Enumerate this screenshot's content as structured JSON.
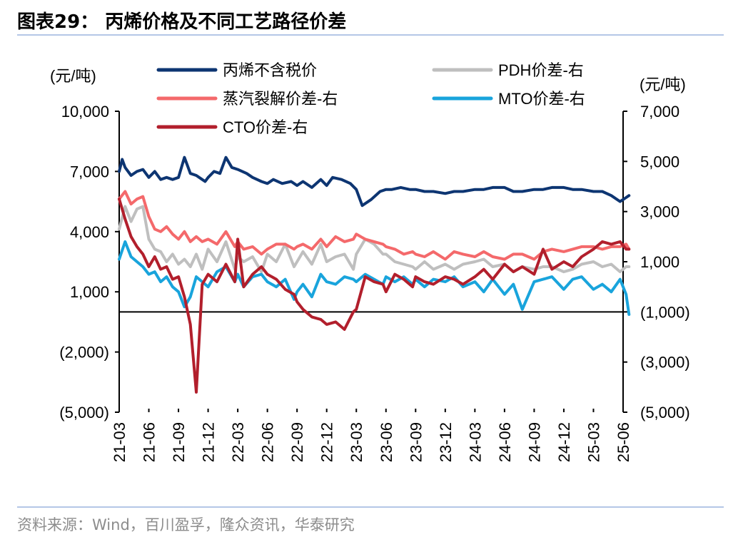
{
  "title": "图表29：  丙烯价格及不同工艺路径价差",
  "source": "资料来源：Wind，百川盈孚，隆众资讯，华泰研究",
  "chart_data": {
    "type": "line",
    "left_unit": "(元/吨)",
    "right_unit": "(元/吨)",
    "left_axis": {
      "ylim": [
        -5000,
        10000
      ],
      "ticks": [
        -5000,
        -2000,
        1000,
        4000,
        7000,
        10000
      ],
      "tick_labels": [
        "(5,000)",
        "(2,000)",
        "1,000",
        "4,000",
        "7,000",
        "10,000"
      ]
    },
    "right_axis": {
      "ylim": [
        -5000,
        7000
      ],
      "ticks": [
        -5000,
        -3000,
        -1000,
        1000,
        3000,
        5000,
        7000
      ],
      "tick_labels": [
        "(5,000)",
        "(3,000)",
        "(1,000)",
        "1,000",
        "3,000",
        "5,000",
        "7,000"
      ]
    },
    "x_ticks": [
      "21-03",
      "21-06",
      "21-09",
      "21-12",
      "22-03",
      "22-06",
      "22-09",
      "22-12",
      "23-03",
      "23-06",
      "23-09",
      "23-12",
      "24-03",
      "24-06",
      "24-09",
      "24-12",
      "25-03",
      "25-06"
    ],
    "legend": [
      "丙烯不含税价",
      "PDH价差-右",
      "蒸汽裂解价差-右",
      "MTO价差-右",
      "CTO价差-右"
    ],
    "legend_position": "top",
    "series": [
      {
        "name": "丙烯不含税价",
        "axis": "left",
        "color": "#0d3572",
        "width": 4,
        "x": [
          0,
          0.1,
          0.2,
          0.4,
          0.6,
          0.8,
          1.0,
          1.2,
          1.4,
          1.6,
          1.8,
          2.0,
          2.2,
          2.4,
          2.6,
          2.8,
          2.9,
          3.0,
          3.2,
          3.4,
          3.6,
          3.8,
          4.0,
          4.3,
          4.5,
          4.8,
          5.0,
          5.2,
          5.5,
          5.8,
          6.0,
          6.2,
          6.5,
          6.8,
          7.0,
          7.2,
          7.5,
          7.8,
          8.0,
          8.2,
          8.5,
          8.8,
          9.0,
          9.2,
          9.5,
          9.8,
          10.0,
          10.3,
          10.6,
          11.0,
          11.3,
          11.6,
          12.0,
          12.3,
          12.6,
          13.0,
          13.3,
          13.6,
          14.0,
          14.3,
          14.6,
          15.0,
          15.3,
          15.6,
          16.0,
          16.3,
          16.6,
          16.9,
          17.1,
          17.2
        ],
        "values": [
          7000,
          7600,
          7200,
          6800,
          7000,
          7100,
          6700,
          7000,
          6600,
          6700,
          6600,
          6700,
          7700,
          6900,
          6800,
          6600,
          6500,
          6700,
          7000,
          6900,
          7700,
          7200,
          7100,
          6900,
          6700,
          6500,
          6400,
          6600,
          6400,
          6500,
          6300,
          6500,
          6200,
          6600,
          6300,
          6700,
          6600,
          6400,
          6100,
          5300,
          5600,
          6000,
          6100,
          6100,
          6200,
          6100,
          6100,
          6000,
          6000,
          5900,
          6000,
          6000,
          6100,
          6100,
          6200,
          6200,
          6000,
          6000,
          6100,
          6100,
          6200,
          6200,
          6100,
          6100,
          6000,
          6000,
          5800,
          5500,
          5700,
          5800
        ]
      },
      {
        "name": "PDH价差-右",
        "axis": "right",
        "color": "#bfbfbf",
        "width": 4,
        "x": [
          0,
          0.2,
          0.4,
          0.6,
          0.8,
          1.0,
          1.2,
          1.4,
          1.6,
          1.8,
          2.0,
          2.2,
          2.4,
          2.6,
          2.8,
          3.0,
          3.3,
          3.6,
          3.9,
          4.0,
          4.2,
          4.5,
          4.8,
          5.0,
          5.3,
          5.6,
          5.9,
          6.0,
          6.2,
          6.5,
          6.8,
          7.0,
          7.3,
          7.6,
          7.9,
          8.0,
          8.3,
          8.6,
          8.9,
          9.0,
          9.3,
          9.6,
          9.9,
          10.0,
          10.3,
          10.6,
          11.0,
          11.3,
          11.6,
          12.0,
          12.3,
          12.6,
          13.0,
          13.3,
          13.6,
          14.0,
          14.3,
          14.6,
          15.0,
          15.3,
          15.6,
          16.0,
          16.3,
          16.6,
          16.9,
          17.1,
          17.2
        ],
        "values": [
          2300,
          3200,
          2600,
          3100,
          3200,
          1900,
          1500,
          1400,
          1000,
          1300,
          900,
          1100,
          800,
          1300,
          700,
          1500,
          1000,
          1800,
          700,
          1200,
          1000,
          1200,
          600,
          1300,
          1000,
          1700,
          800,
          1000,
          1400,
          900,
          1700,
          1000,
          1200,
          1300,
          700,
          1300,
          1900,
          1700,
          1300,
          1300,
          1000,
          900,
          800,
          700,
          1000,
          700,
          900,
          700,
          900,
          1000,
          1100,
          800,
          900,
          600,
          800,
          700,
          800,
          800,
          600,
          700,
          900,
          1000,
          800,
          900,
          600,
          800,
          800
        ]
      },
      {
        "name": "蒸汽裂解价差-右",
        "axis": "right",
        "color": "#f4696b",
        "width": 4,
        "x": [
          0,
          0.2,
          0.4,
          0.6,
          0.8,
          1.0,
          1.2,
          1.4,
          1.6,
          1.8,
          2.0,
          2.2,
          2.4,
          2.6,
          2.8,
          3.0,
          3.3,
          3.6,
          3.9,
          4.0,
          4.2,
          4.5,
          4.8,
          5.0,
          5.3,
          5.6,
          5.9,
          6.0,
          6.2,
          6.5,
          6.8,
          7.0,
          7.3,
          7.6,
          7.9,
          8.0,
          8.3,
          8.6,
          8.9,
          9.0,
          9.3,
          9.6,
          9.9,
          10.0,
          10.3,
          10.6,
          11.0,
          11.3,
          11.6,
          12.0,
          12.3,
          12.6,
          13.0,
          13.3,
          13.6,
          14.0,
          14.3,
          14.6,
          15.0,
          15.3,
          15.6,
          16.0,
          16.3,
          16.6,
          16.9,
          17.1,
          17.2
        ],
        "values": [
          3500,
          3800,
          3300,
          3500,
          3600,
          2800,
          2300,
          2200,
          2400,
          2100,
          1900,
          2200,
          1800,
          2000,
          1800,
          1900,
          1700,
          2200,
          1600,
          1800,
          1500,
          1600,
          1300,
          1500,
          1700,
          1700,
          1500,
          1600,
          1700,
          1500,
          1900,
          1600,
          2000,
          1800,
          1900,
          2100,
          1900,
          1800,
          1700,
          1600,
          1500,
          1300,
          1400,
          1300,
          1200,
          1400,
          1100,
          1400,
          1300,
          1200,
          1400,
          1200,
          1100,
          1300,
          1300,
          1100,
          1400,
          1500,
          1400,
          1500,
          1600,
          1600,
          1500,
          1600,
          1600,
          1700,
          1500
        ]
      },
      {
        "name": "MTO价差-右",
        "axis": "right",
        "color": "#19a4dc",
        "width": 4,
        "x": [
          0,
          0.2,
          0.4,
          0.6,
          0.8,
          1.0,
          1.2,
          1.4,
          1.6,
          1.8,
          2.0,
          2.2,
          2.4,
          2.6,
          2.8,
          3.0,
          3.3,
          3.6,
          3.9,
          4.0,
          4.2,
          4.5,
          4.8,
          5.0,
          5.3,
          5.6,
          5.9,
          6.0,
          6.2,
          6.5,
          6.8,
          7.0,
          7.3,
          7.6,
          7.9,
          8.0,
          8.3,
          8.6,
          8.9,
          9.0,
          9.3,
          9.6,
          9.9,
          10.0,
          10.3,
          10.6,
          11.0,
          11.3,
          11.6,
          12.0,
          12.3,
          12.6,
          13.0,
          13.3,
          13.6,
          14.0,
          14.3,
          14.6,
          15.0,
          15.3,
          15.6,
          16.0,
          16.3,
          16.6,
          16.9,
          17.1,
          17.2
        ],
        "values": [
          1100,
          1800,
          1200,
          1000,
          800,
          500,
          600,
          200,
          400,
          0,
          -200,
          -800,
          -400,
          400,
          200,
          0,
          600,
          800,
          200,
          500,
          0,
          400,
          500,
          200,
          0,
          300,
          -500,
          -200,
          100,
          -400,
          500,
          200,
          100,
          400,
          300,
          200,
          500,
          300,
          100,
          400,
          200,
          400,
          100,
          300,
          0,
          300,
          200,
          400,
          0,
          200,
          -200,
          300,
          -300,
          100,
          -900,
          200,
          300,
          400,
          -100,
          300,
          400,
          -100,
          100,
          -200,
          300,
          -300,
          -1100
        ]
      },
      {
        "name": "CTO价差-右",
        "axis": "right",
        "color": "#b21f2c",
        "width": 4,
        "x": [
          0,
          0.2,
          0.4,
          0.6,
          0.8,
          1.0,
          1.2,
          1.4,
          1.6,
          1.8,
          2.0,
          2.2,
          2.4,
          2.6,
          2.8,
          3.0,
          3.3,
          3.6,
          3.9,
          4.0,
          4.2,
          4.5,
          4.8,
          5.0,
          5.3,
          5.6,
          5.9,
          6.0,
          6.2,
          6.5,
          6.8,
          7.0,
          7.3,
          7.6,
          7.9,
          8.0,
          8.3,
          8.6,
          8.9,
          9.0,
          9.3,
          9.6,
          9.9,
          10.0,
          10.3,
          10.6,
          11.0,
          11.3,
          11.6,
          12.0,
          12.3,
          12.6,
          13.0,
          13.3,
          13.6,
          14.0,
          14.3,
          14.6,
          15.0,
          15.3,
          15.6,
          16.0,
          16.3,
          16.6,
          16.9,
          17.1,
          17.2
        ],
        "values": [
          3500,
          2700,
          2000,
          1600,
          1300,
          800,
          1200,
          700,
          800,
          300,
          400,
          -400,
          -1500,
          -4200,
          100,
          500,
          200,
          900,
          200,
          1900,
          0,
          500,
          800,
          500,
          300,
          -100,
          -300,
          -600,
          -900,
          -1200,
          -1300,
          -1500,
          -1400,
          -1700,
          -1000,
          -900,
          400,
          200,
          100,
          -200,
          500,
          300,
          0,
          400,
          200,
          100,
          400,
          300,
          100,
          400,
          700,
          300,
          900,
          600,
          800,
          500,
          1500,
          700,
          1000,
          800,
          1200,
          1500,
          1800,
          1700,
          1800,
          1500,
          1500
        ]
      }
    ]
  }
}
